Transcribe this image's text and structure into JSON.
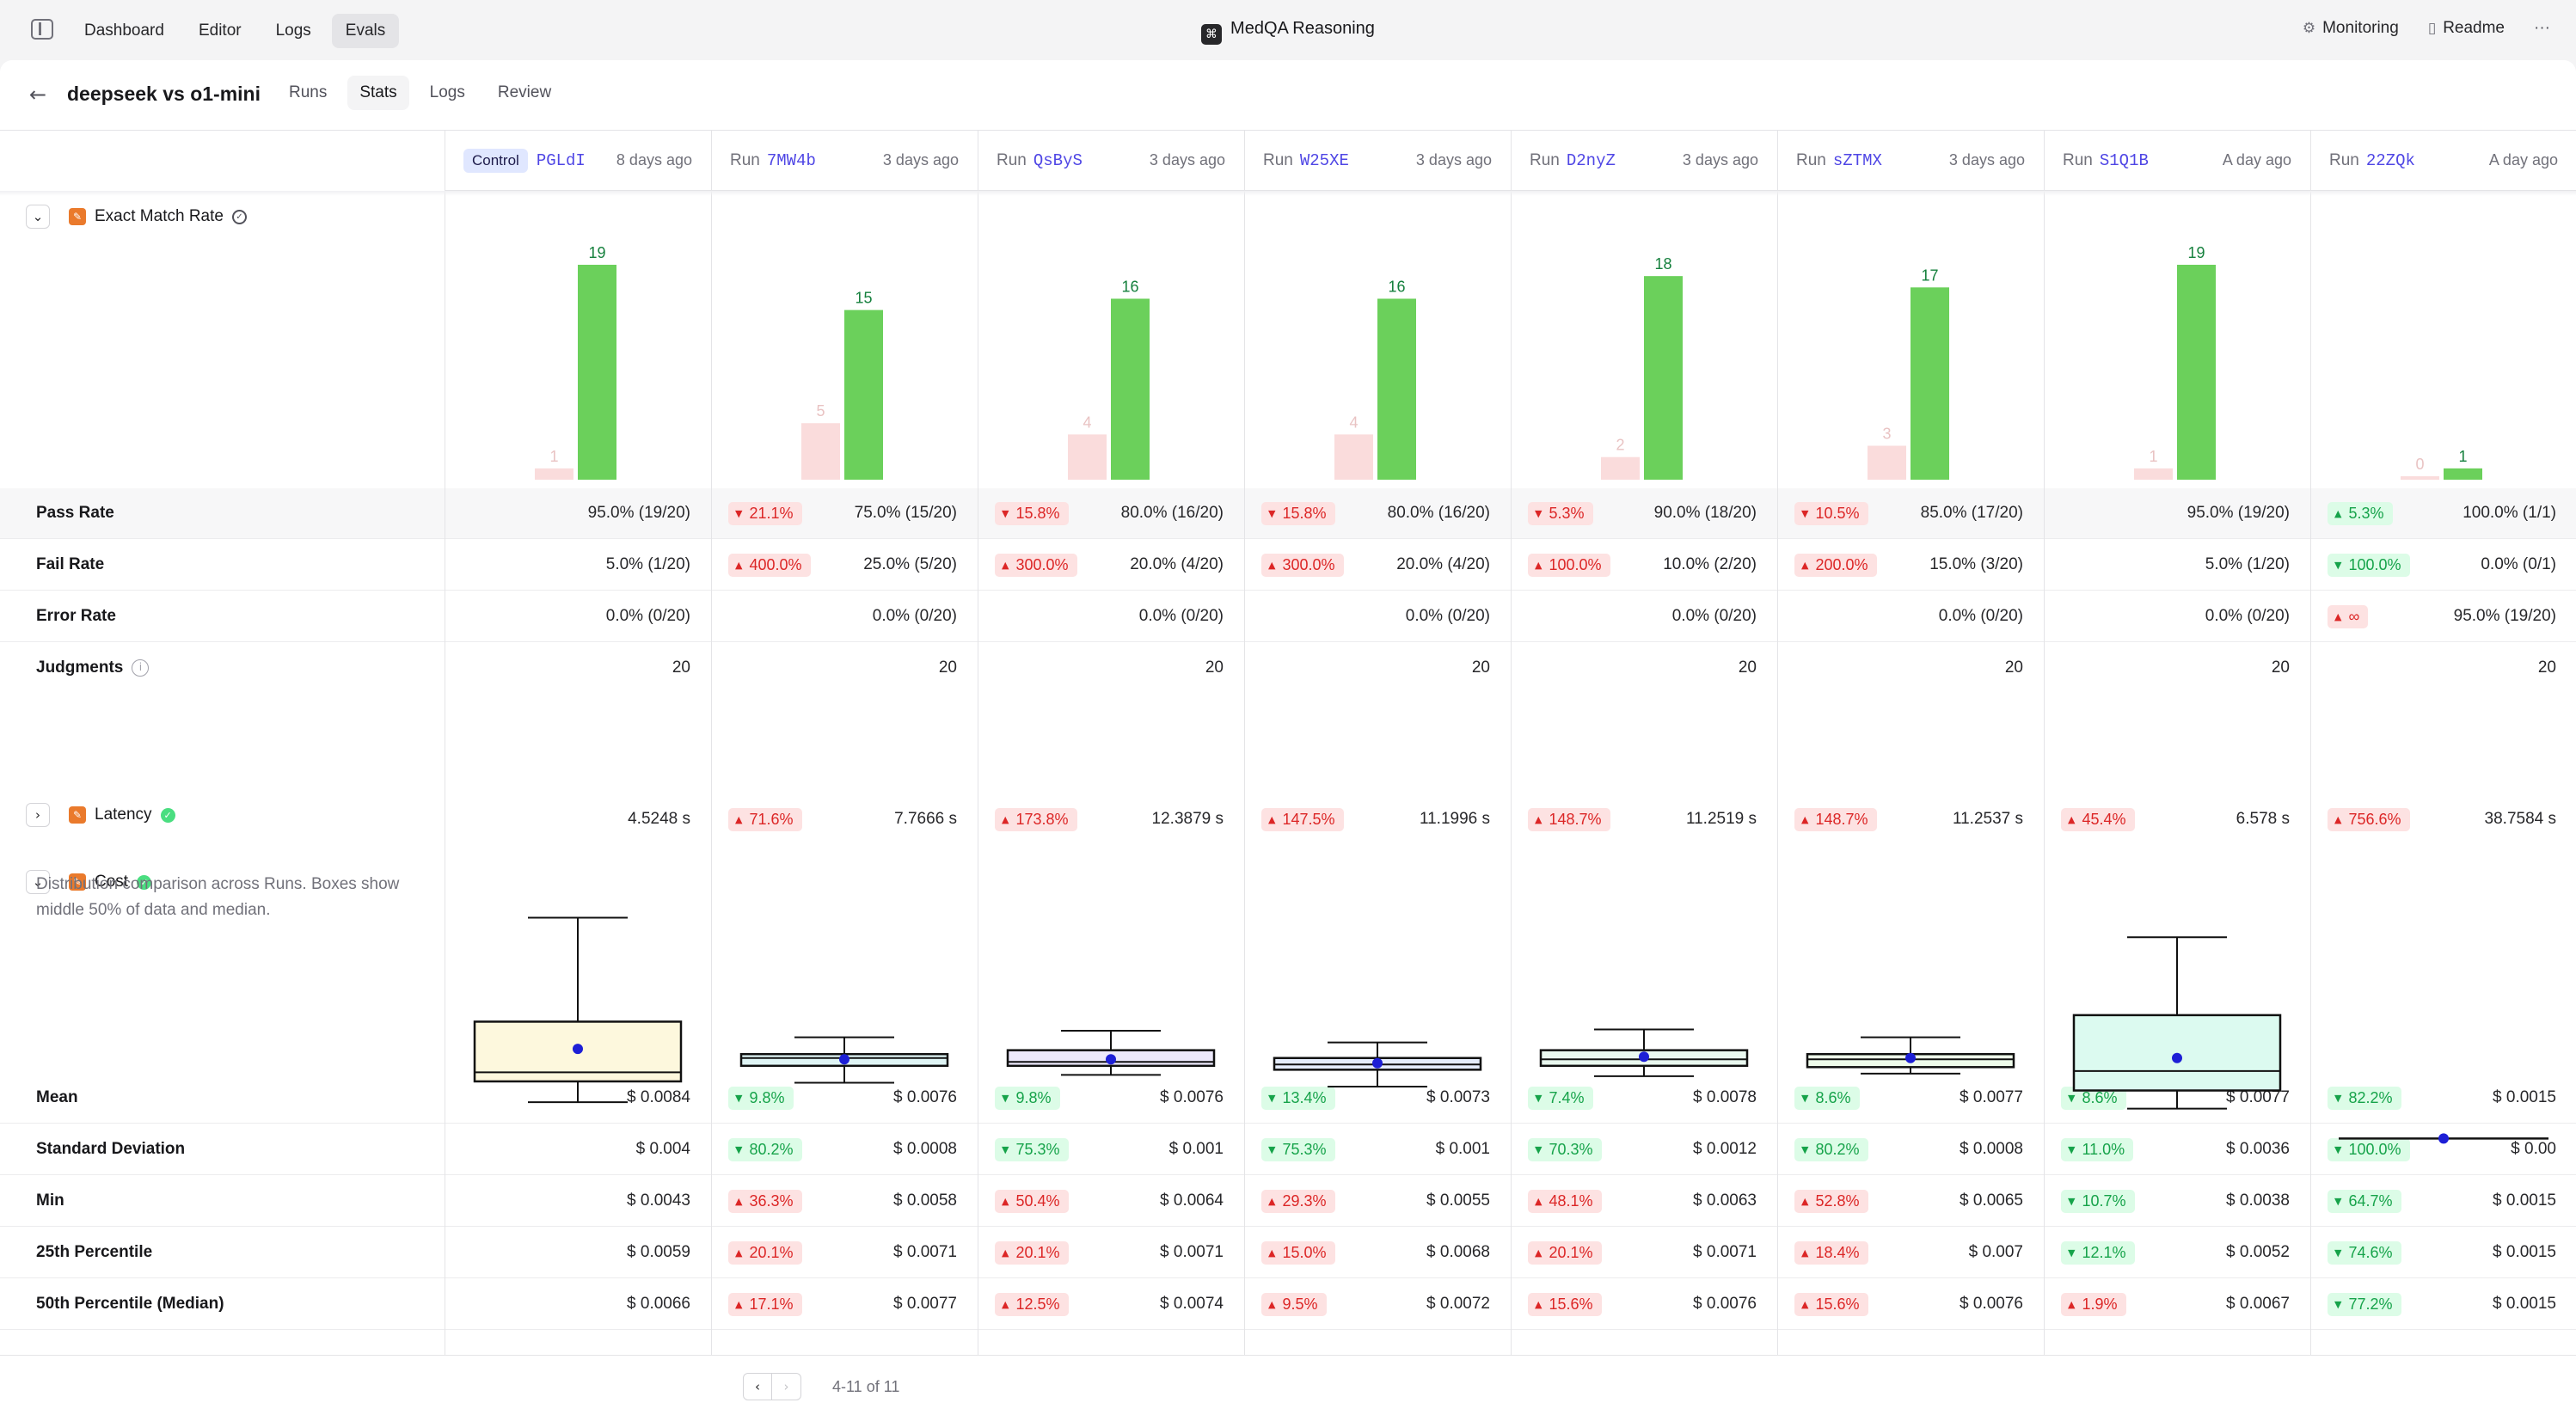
{
  "nav": {
    "items": [
      "Dashboard",
      "Editor",
      "Logs",
      "Evals"
    ],
    "active": 3
  },
  "app_title": "MedQA Reasoning",
  "top_right": {
    "monitoring": "Monitoring",
    "readme": "Readme",
    "more": "···"
  },
  "page": {
    "title": "deepseek vs o1-mini",
    "tabs": [
      "Runs",
      "Stats",
      "Logs",
      "Review"
    ],
    "active_tab": 1
  },
  "control_label": "Control",
  "run_label": "Run",
  "runs": [
    {
      "id": "PGLdI",
      "when": "8 days ago",
      "control": true
    },
    {
      "id": "7MW4b",
      "when": "3 days ago"
    },
    {
      "id": "QsByS",
      "when": "3 days ago"
    },
    {
      "id": "W25XE",
      "when": "3 days ago"
    },
    {
      "id": "D2nyZ",
      "when": "3 days ago"
    },
    {
      "id": "sZTMX",
      "when": "3 days ago"
    },
    {
      "id": "S1Q1B",
      "when": "A day ago"
    },
    {
      "id": "22ZQk",
      "when": "A day ago"
    }
  ],
  "sections": {
    "exact_match": "Exact Match Rate",
    "latency": "Latency",
    "cost": "Cost",
    "cost_description": "Distribution comparison across Runs. Boxes show middle 50% of data and median."
  },
  "exact_match_chart": {
    "type": "bar",
    "series": [
      {
        "values": [
          1,
          5,
          4,
          4,
          2,
          3,
          1,
          0
        ],
        "color": "#fadcdc"
      },
      {
        "values": [
          19,
          15,
          16,
          16,
          18,
          17,
          19,
          1
        ],
        "color": "#6bd05b"
      }
    ],
    "ylim": [
      0,
      19
    ]
  },
  "exact_rows": [
    {
      "label": "Pass Rate",
      "cells": [
        {
          "value": "95.0% (19/20)"
        },
        {
          "value": "75.0% (15/20)",
          "delta": "21.1%",
          "dir": "down",
          "tone": "red"
        },
        {
          "value": "80.0% (16/20)",
          "delta": "15.8%",
          "dir": "down",
          "tone": "red"
        },
        {
          "value": "80.0% (16/20)",
          "delta": "15.8%",
          "dir": "down",
          "tone": "red"
        },
        {
          "value": "90.0% (18/20)",
          "delta": "5.3%",
          "dir": "down",
          "tone": "red"
        },
        {
          "value": "85.0% (17/20)",
          "delta": "10.5%",
          "dir": "down",
          "tone": "red"
        },
        {
          "value": "95.0% (19/20)"
        },
        {
          "value": "100.0% (1/1)",
          "delta": "5.3%",
          "dir": "up",
          "tone": "green"
        }
      ]
    },
    {
      "label": "Fail Rate",
      "cells": [
        {
          "value": "5.0% (1/20)"
        },
        {
          "value": "25.0% (5/20)",
          "delta": "400.0%",
          "dir": "up",
          "tone": "red"
        },
        {
          "value": "20.0% (4/20)",
          "delta": "300.0%",
          "dir": "up",
          "tone": "red"
        },
        {
          "value": "20.0% (4/20)",
          "delta": "300.0%",
          "dir": "up",
          "tone": "red"
        },
        {
          "value": "10.0% (2/20)",
          "delta": "100.0%",
          "dir": "up",
          "tone": "red"
        },
        {
          "value": "15.0% (3/20)",
          "delta": "200.0%",
          "dir": "up",
          "tone": "red"
        },
        {
          "value": "5.0% (1/20)"
        },
        {
          "value": "0.0% (0/1)",
          "delta": "100.0%",
          "dir": "down",
          "tone": "green"
        }
      ]
    },
    {
      "label": "Error Rate",
      "cells": [
        {
          "value": "0.0% (0/20)"
        },
        {
          "value": "0.0% (0/20)"
        },
        {
          "value": "0.0% (0/20)"
        },
        {
          "value": "0.0% (0/20)"
        },
        {
          "value": "0.0% (0/20)"
        },
        {
          "value": "0.0% (0/20)"
        },
        {
          "value": "0.0% (0/20)"
        },
        {
          "value": "95.0% (19/20)",
          "delta": "∞",
          "dir": "up",
          "tone": "red"
        }
      ]
    },
    {
      "label": "Judgments",
      "info": true,
      "cells": [
        {
          "value": "20"
        },
        {
          "value": "20"
        },
        {
          "value": "20"
        },
        {
          "value": "20"
        },
        {
          "value": "20"
        },
        {
          "value": "20"
        },
        {
          "value": "20"
        },
        {
          "value": "20"
        }
      ]
    }
  ],
  "latency_cells": [
    {
      "value": "4.5248 s"
    },
    {
      "value": "7.7666 s",
      "delta": "71.6%",
      "dir": "up",
      "tone": "red"
    },
    {
      "value": "12.3879 s",
      "delta": "173.8%",
      "dir": "up",
      "tone": "red"
    },
    {
      "value": "11.1996 s",
      "delta": "147.5%",
      "dir": "up",
      "tone": "red"
    },
    {
      "value": "11.2519 s",
      "delta": "148.7%",
      "dir": "up",
      "tone": "red"
    },
    {
      "value": "11.2537 s",
      "delta": "148.7%",
      "dir": "up",
      "tone": "red"
    },
    {
      "value": "6.578 s",
      "delta": "45.4%",
      "dir": "up",
      "tone": "red"
    },
    {
      "value": "38.7584 s",
      "delta": "756.6%",
      "dir": "up",
      "tone": "red"
    }
  ],
  "cost_box_chart": {
    "type": "box",
    "unit": "$",
    "boxes": [
      {
        "min": 0.0043,
        "q1": 0.0059,
        "median": 0.0066,
        "q3": 0.0105,
        "max": 0.0185,
        "mean": 0.0084,
        "fill": "#fdf8dd"
      },
      {
        "min": 0.0058,
        "q1": 0.0071,
        "median": 0.0077,
        "q3": 0.008,
        "max": 0.0093,
        "mean": 0.0076,
        "fill": "#dff5f5"
      },
      {
        "min": 0.0064,
        "q1": 0.0071,
        "median": 0.0074,
        "q3": 0.0083,
        "max": 0.0098,
        "mean": 0.0076,
        "fill": "#ece8fb"
      },
      {
        "min": 0.0055,
        "q1": 0.0068,
        "median": 0.0072,
        "q3": 0.0077,
        "max": 0.0089,
        "mean": 0.0073,
        "fill": "#e4ecfb"
      },
      {
        "min": 0.0063,
        "q1": 0.0071,
        "median": 0.0076,
        "q3": 0.0083,
        "max": 0.0099,
        "mean": 0.0078,
        "fill": "#e9f8ef"
      },
      {
        "min": 0.0065,
        "q1": 0.007,
        "median": 0.0076,
        "q3": 0.008,
        "max": 0.0093,
        "mean": 0.0077,
        "fill": "#eefbea"
      },
      {
        "min": 0.0038,
        "q1": 0.0052,
        "median": 0.0067,
        "q3": 0.011,
        "max": 0.017,
        "mean": 0.0077,
        "fill": "#dcfaf0"
      },
      {
        "min": 0.0015,
        "q1": 0.0015,
        "median": 0.0015,
        "q3": 0.0015,
        "max": 0.0015,
        "mean": 0.0015,
        "fill": "#ffffff"
      }
    ],
    "ylim": [
      0.0008,
      0.019
    ]
  },
  "cost_rows": [
    {
      "label": "Mean",
      "cells": [
        {
          "value": "$ 0.0084"
        },
        {
          "value": "$ 0.0076",
          "delta": "9.8%",
          "dir": "down",
          "tone": "green"
        },
        {
          "value": "$ 0.0076",
          "delta": "9.8%",
          "dir": "down",
          "tone": "green"
        },
        {
          "value": "$ 0.0073",
          "delta": "13.4%",
          "dir": "down",
          "tone": "green"
        },
        {
          "value": "$ 0.0078",
          "delta": "7.4%",
          "dir": "down",
          "tone": "green"
        },
        {
          "value": "$ 0.0077",
          "delta": "8.6%",
          "dir": "down",
          "tone": "green"
        },
        {
          "value": "$ 0.0077",
          "delta": "8.6%",
          "dir": "down",
          "tone": "green"
        },
        {
          "value": "$ 0.0015",
          "delta": "82.2%",
          "dir": "down",
          "tone": "green"
        }
      ]
    },
    {
      "label": "Standard Deviation",
      "cells": [
        {
          "value": "$ 0.004"
        },
        {
          "value": "$ 0.0008",
          "delta": "80.2%",
          "dir": "down",
          "tone": "green"
        },
        {
          "value": "$ 0.001",
          "delta": "75.3%",
          "dir": "down",
          "tone": "green"
        },
        {
          "value": "$ 0.001",
          "delta": "75.3%",
          "dir": "down",
          "tone": "green"
        },
        {
          "value": "$ 0.0012",
          "delta": "70.3%",
          "dir": "down",
          "tone": "green"
        },
        {
          "value": "$ 0.0008",
          "delta": "80.2%",
          "dir": "down",
          "tone": "green"
        },
        {
          "value": "$ 0.0036",
          "delta": "11.0%",
          "dir": "down",
          "tone": "green"
        },
        {
          "value": "$ 0.00",
          "delta": "100.0%",
          "dir": "down",
          "tone": "green"
        }
      ]
    },
    {
      "label": "Min",
      "cells": [
        {
          "value": "$ 0.0043"
        },
        {
          "value": "$ 0.0058",
          "delta": "36.3%",
          "dir": "up",
          "tone": "red"
        },
        {
          "value": "$ 0.0064",
          "delta": "50.4%",
          "dir": "up",
          "tone": "red"
        },
        {
          "value": "$ 0.0055",
          "delta": "29.3%",
          "dir": "up",
          "tone": "red"
        },
        {
          "value": "$ 0.0063",
          "delta": "48.1%",
          "dir": "up",
          "tone": "red"
        },
        {
          "value": "$ 0.0065",
          "delta": "52.8%",
          "dir": "up",
          "tone": "red"
        },
        {
          "value": "$ 0.0038",
          "delta": "10.7%",
          "dir": "down",
          "tone": "green"
        },
        {
          "value": "$ 0.0015",
          "delta": "64.7%",
          "dir": "down",
          "tone": "green"
        }
      ]
    },
    {
      "label": "25th Percentile",
      "cells": [
        {
          "value": "$ 0.0059"
        },
        {
          "value": "$ 0.0071",
          "delta": "20.1%",
          "dir": "up",
          "tone": "red"
        },
        {
          "value": "$ 0.0071",
          "delta": "20.1%",
          "dir": "up",
          "tone": "red"
        },
        {
          "value": "$ 0.0068",
          "delta": "15.0%",
          "dir": "up",
          "tone": "red"
        },
        {
          "value": "$ 0.0071",
          "delta": "20.1%",
          "dir": "up",
          "tone": "red"
        },
        {
          "value": "$ 0.007",
          "delta": "18.4%",
          "dir": "up",
          "tone": "red"
        },
        {
          "value": "$ 0.0052",
          "delta": "12.1%",
          "dir": "down",
          "tone": "green"
        },
        {
          "value": "$ 0.0015",
          "delta": "74.6%",
          "dir": "down",
          "tone": "green"
        }
      ]
    },
    {
      "label": "50th Percentile (Median)",
      "cells": [
        {
          "value": "$ 0.0066"
        },
        {
          "value": "$ 0.0077",
          "delta": "17.1%",
          "dir": "up",
          "tone": "red"
        },
        {
          "value": "$ 0.0074",
          "delta": "12.5%",
          "dir": "up",
          "tone": "red"
        },
        {
          "value": "$ 0.0072",
          "delta": "9.5%",
          "dir": "up",
          "tone": "red"
        },
        {
          "value": "$ 0.0076",
          "delta": "15.6%",
          "dir": "up",
          "tone": "red"
        },
        {
          "value": "$ 0.0076",
          "delta": "15.6%",
          "dir": "up",
          "tone": "red"
        },
        {
          "value": "$ 0.0067",
          "delta": "1.9%",
          "dir": "up",
          "tone": "red"
        },
        {
          "value": "$ 0.0015",
          "delta": "77.2%",
          "dir": "down",
          "tone": "green"
        }
      ]
    }
  ],
  "pagination": {
    "info": "4-11 of 11",
    "prev": "‹",
    "next": "›"
  },
  "icons": {
    "sidebar": "sidebar-toggle-icon",
    "back": "arrow-left-icon",
    "chevron_down": "chevron-down-icon",
    "chevron_right": "chevron-right-icon",
    "info": "info-icon",
    "check": "check-circle-icon"
  }
}
